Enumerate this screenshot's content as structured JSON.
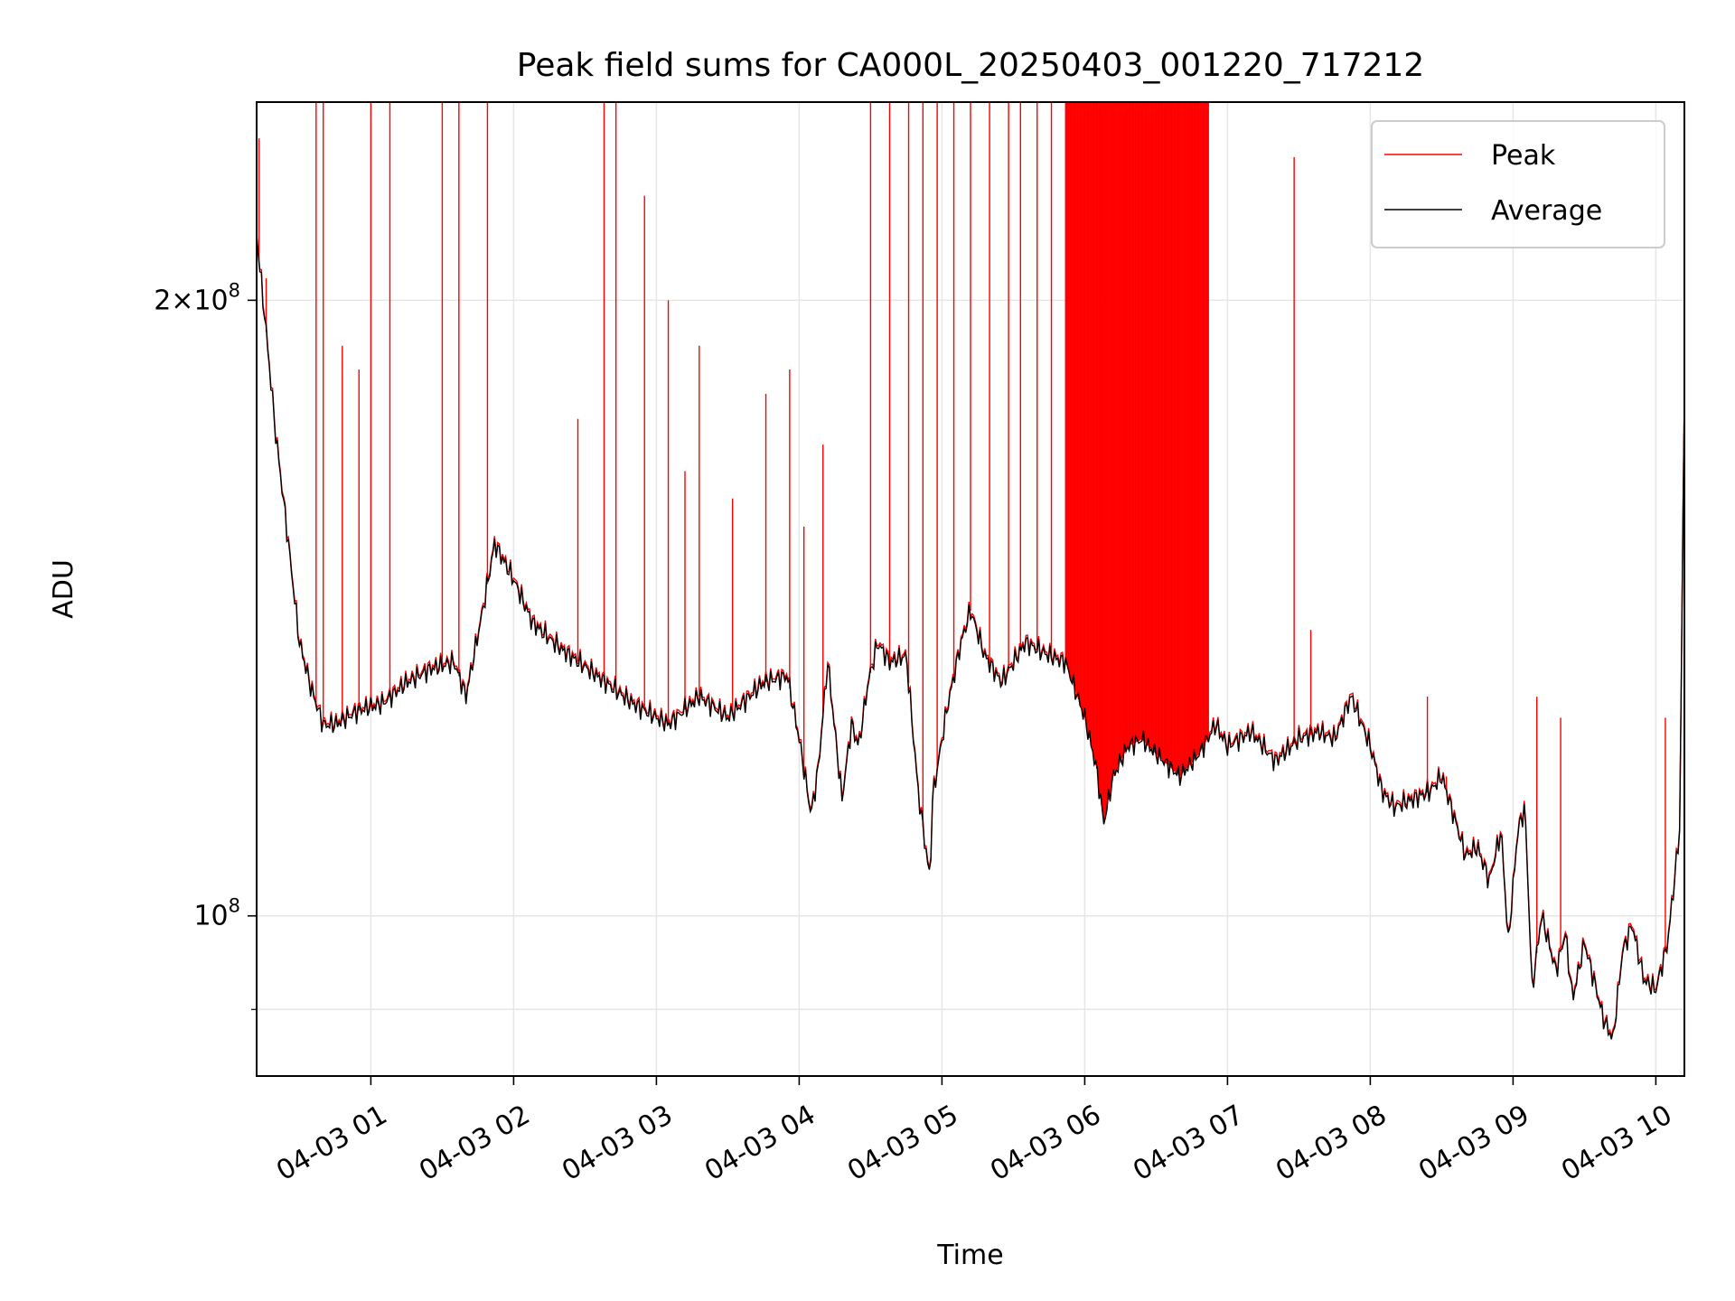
{
  "chart_data": {
    "type": "line",
    "title": "Peak field sums for CA000L_20250403_001220_717212",
    "xlabel": "Time",
    "ylabel": "ADU",
    "x_unit": "hours",
    "xlim": [
      "2025-04-03 00:12",
      "2025-04-03 10:12"
    ],
    "ylim": [
      83500000,
      250000000
    ],
    "y_scale": "log",
    "grid": true,
    "legend_position": "upper right",
    "x_tick_labels": [
      "04-03 01",
      "04-03 02",
      "04-03 03",
      "04-03 04",
      "04-03 05",
      "04-03 06",
      "04-03 07",
      "04-03 08",
      "04-03 09",
      "04-03 10"
    ],
    "y_major_ticks": [
      {
        "value": 100000000,
        "base": "10",
        "exp": "8"
      },
      {
        "value": 200000000,
        "mant": "2",
        "base": "10",
        "exp": "8"
      }
    ],
    "y_minor_ticks": [
      90000000
    ],
    "series": [
      {
        "name": "Average",
        "color": "#000000",
        "x": [
          "2025-04-03 00:12",
          "2025-04-03 00:16",
          "2025-04-03 00:20",
          "2025-04-03 00:24",
          "2025-04-03 00:30",
          "2025-04-03 00:35",
          "2025-04-03 00:40",
          "2025-04-03 00:45",
          "2025-04-03 00:55",
          "2025-04-03 01:05",
          "2025-04-03 01:15",
          "2025-04-03 01:25",
          "2025-04-03 01:35",
          "2025-04-03 01:40",
          "2025-04-03 01:47",
          "2025-04-03 01:52",
          "2025-04-03 02:00",
          "2025-04-03 02:08",
          "2025-04-03 02:20",
          "2025-04-03 02:35",
          "2025-04-03 02:50",
          "2025-04-03 03:05",
          "2025-04-03 03:18",
          "2025-04-03 03:30",
          "2025-04-03 03:45",
          "2025-04-03 03:55",
          "2025-04-03 04:00",
          "2025-04-03 04:05",
          "2025-04-03 04:08",
          "2025-04-03 04:12",
          "2025-04-03 04:18",
          "2025-04-03 04:22",
          "2025-04-03 04:25",
          "2025-04-03 04:29",
          "2025-04-03 04:33",
          "2025-04-03 04:38",
          "2025-04-03 04:45",
          "2025-04-03 04:50",
          "2025-04-03 04:55",
          "2025-04-03 04:56",
          "2025-04-03 05:02",
          "2025-04-03 05:08",
          "2025-04-03 05:12",
          "2025-04-03 05:18",
          "2025-04-03 05:25",
          "2025-04-03 05:35",
          "2025-04-03 05:45",
          "2025-04-03 05:52",
          "2025-04-03 06:00",
          "2025-04-03 06:05",
          "2025-04-03 06:08",
          "2025-04-03 06:12",
          "2025-04-03 06:18",
          "2025-04-03 06:24",
          "2025-04-03 06:30",
          "2025-04-03 06:40",
          "2025-04-03 06:48",
          "2025-04-03 06:55",
          "2025-04-03 07:00",
          "2025-04-03 07:10",
          "2025-04-03 07:20",
          "2025-04-03 07:30",
          "2025-04-03 07:38",
          "2025-04-03 07:45",
          "2025-04-03 07:52",
          "2025-04-03 08:00",
          "2025-04-03 08:05",
          "2025-04-03 08:10",
          "2025-04-03 08:18",
          "2025-04-03 08:25",
          "2025-04-03 08:30",
          "2025-04-03 08:35",
          "2025-04-03 08:40",
          "2025-04-03 08:45",
          "2025-04-03 08:50",
          "2025-04-03 08:55",
          "2025-04-03 08:58",
          "2025-04-03 09:02",
          "2025-04-03 09:05",
          "2025-04-03 09:08",
          "2025-04-03 09:12",
          "2025-04-03 09:18",
          "2025-04-03 09:22",
          "2025-04-03 09:25",
          "2025-04-03 09:30",
          "2025-04-03 09:35",
          "2025-04-03 09:38",
          "2025-04-03 09:42",
          "2025-04-03 09:46",
          "2025-04-03 09:50",
          "2025-04-03 09:55",
          "2025-04-03 10:00",
          "2025-04-03 10:05",
          "2025-04-03 10:10",
          "2025-04-03 10:12"
        ],
        "y": [
          215000000,
          193000000,
          172000000,
          157000000,
          136000000,
          129000000,
          124000000,
          124000000,
          126000000,
          127000000,
          130000000,
          132000000,
          133000000,
          128000000,
          141000000,
          152000000,
          146000000,
          139000000,
          135000000,
          131000000,
          127000000,
          124000000,
          128000000,
          125000000,
          130000000,
          131000000,
          122000000,
          112000000,
          118000000,
          133000000,
          114000000,
          124000000,
          121000000,
          130000000,
          136000000,
          133000000,
          134000000,
          115000000,
          104000000,
          114000000,
          126000000,
          136000000,
          141000000,
          134000000,
          130000000,
          136000000,
          134000000,
          133000000,
          125000000,
          118000000,
          111000000,
          117000000,
          121000000,
          122000000,
          120000000,
          117000000,
          120000000,
          124000000,
          121000000,
          123000000,
          119000000,
          122000000,
          123000000,
          122000000,
          128000000,
          121000000,
          115000000,
          113000000,
          114000000,
          115000000,
          117000000,
          112000000,
          107000000,
          108000000,
          104000000,
          110000000,
          97000000,
          110000000,
          113000000,
          92000000,
          100000000,
          94000000,
          98000000,
          91000000,
          97000000,
          92000000,
          89000000,
          87000000,
          96000000,
          99000000,
          93000000,
          92000000,
          97000000,
          110000000,
          180000000
        ]
      },
      {
        "name": "Peak",
        "color": "#ff0000",
        "baseline": "follows Average",
        "spike_times": [
          "2025-04-03 00:13",
          "2025-04-03 00:16",
          "2025-04-03 00:37",
          "2025-04-03 00:40",
          "2025-04-03 00:48",
          "2025-04-03 00:55",
          "2025-04-03 01:00",
          "2025-04-03 01:08",
          "2025-04-03 01:30",
          "2025-04-03 01:37",
          "2025-04-03 01:49",
          "2025-04-03 02:27",
          "2025-04-03 02:38",
          "2025-04-03 02:43",
          "2025-04-03 02:55",
          "2025-04-03 03:05",
          "2025-04-03 03:12",
          "2025-04-03 03:18",
          "2025-04-03 03:32",
          "2025-04-03 03:46",
          "2025-04-03 03:56",
          "2025-04-03 04:02",
          "2025-04-03 04:10",
          "2025-04-03 04:30",
          "2025-04-03 04:38",
          "2025-04-03 04:46",
          "2025-04-03 04:52",
          "2025-04-03 04:58",
          "2025-04-03 05:05",
          "2025-04-03 05:12",
          "2025-04-03 05:20",
          "2025-04-03 05:28",
          "2025-04-03 05:33",
          "2025-04-03 05:40",
          "2025-04-03 05:46",
          "2025-04-03 05:52",
          "2025-04-03 07:28",
          "2025-04-03 07:35",
          "2025-04-03 08:24",
          "2025-04-03 08:32",
          "2025-04-03 09:10",
          "2025-04-03 09:20",
          "2025-04-03 10:04"
        ],
        "spike_values": [
          240000000,
          205000000,
          250000000,
          250000000,
          190000000,
          185000000,
          250000000,
          250000000,
          250000000,
          250000000,
          250000000,
          175000000,
          250000000,
          250000000,
          225000000,
          200000000,
          165000000,
          190000000,
          160000000,
          180000000,
          185000000,
          155000000,
          170000000,
          250000000,
          250000000,
          250000000,
          250000000,
          250000000,
          250000000,
          250000000,
          250000000,
          250000000,
          250000000,
          250000000,
          250000000,
          250000000,
          235000000,
          138000000,
          128000000,
          117000000,
          128000000,
          125000000,
          125000000
        ],
        "dense_band": [
          "2025-04-03 05:52",
          "2025-04-03 06:52"
        ],
        "dense_band_top": 250000000
      }
    ]
  }
}
